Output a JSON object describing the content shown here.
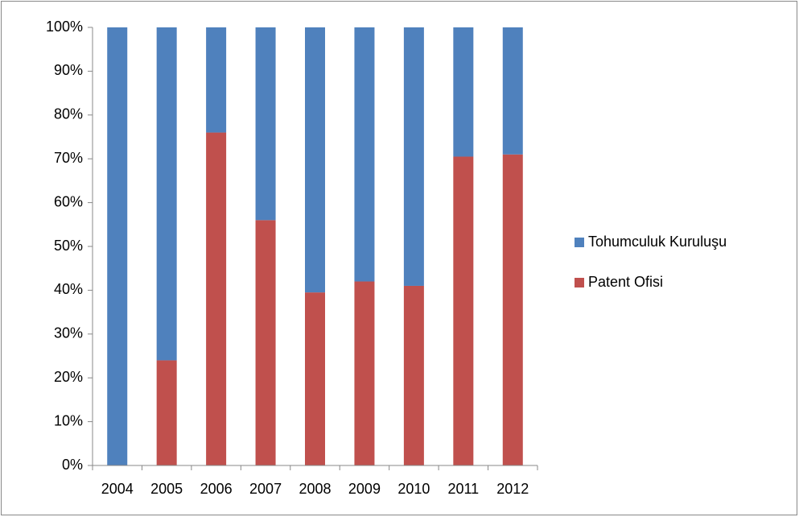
{
  "chart_data": {
    "type": "stacked_bar",
    "categories": [
      "2004",
      "2005",
      "2006",
      "2007",
      "2008",
      "2009",
      "2010",
      "2011",
      "2012"
    ],
    "series": [
      {
        "name": "Patent Ofisi",
        "color": "#c0504d",
        "values": [
          0,
          24,
          76,
          56,
          39.5,
          42,
          41,
          70.5,
          71
        ]
      },
      {
        "name": "Tohumculuk Kuruluşu",
        "color": "#4f81bd",
        "values": [
          100,
          76,
          24,
          44,
          60.5,
          58,
          59,
          29.5,
          29
        ]
      }
    ],
    "ylim": [
      0,
      100
    ],
    "yticks": [
      {
        "value": 0,
        "label": "0%"
      },
      {
        "value": 10,
        "label": "10%"
      },
      {
        "value": 20,
        "label": "20%"
      },
      {
        "value": 30,
        "label": "30%"
      },
      {
        "value": 40,
        "label": "40%"
      },
      {
        "value": 50,
        "label": "50%"
      },
      {
        "value": 60,
        "label": "60%"
      },
      {
        "value": 70,
        "label": "70%"
      },
      {
        "value": 80,
        "label": "80%"
      },
      {
        "value": 90,
        "label": "90%"
      },
      {
        "value": 100,
        "label": "100%"
      }
    ],
    "legend": "right"
  }
}
